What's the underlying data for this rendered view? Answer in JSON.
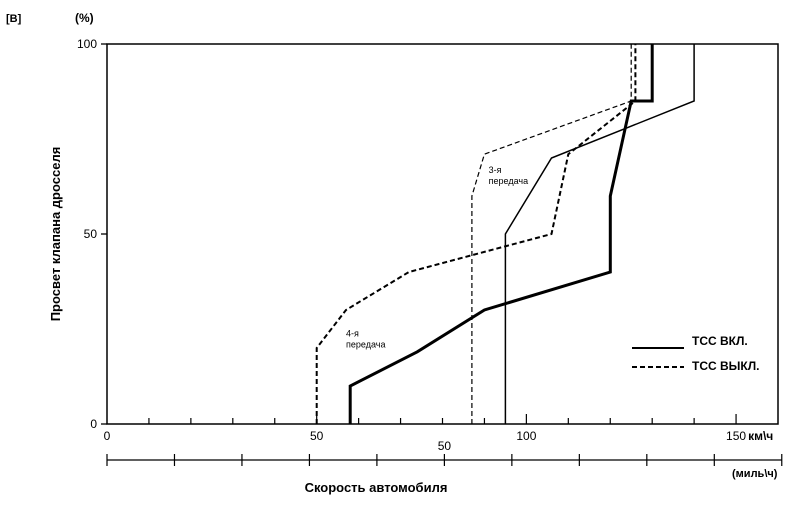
{
  "figure": {
    "label": "[B]"
  },
  "chart_data": {
    "type": "line",
    "y_unit": "(%)",
    "ylabel": "Просвет клапана дросселя",
    "xlabel": "Скорость автомобиля",
    "x_unit_primary": "км\\ч",
    "x_unit_secondary": "(миль\\ч)",
    "xlim": [
      0,
      160
    ],
    "ylim": [
      0,
      100
    ],
    "x_ticks": [
      {
        "value": 0,
        "label": "0"
      },
      {
        "value": 50,
        "label": "50"
      },
      {
        "value": 100,
        "label": "100"
      },
      {
        "value": 150,
        "label": "150"
      }
    ],
    "y_ticks": [
      {
        "value": 0,
        "label": "0"
      },
      {
        "value": 50,
        "label": "50"
      },
      {
        "value": 100,
        "label": "100"
      }
    ],
    "secondary_axis": {
      "unit": "mph",
      "label_value": 50,
      "tick_step": 10,
      "max": 100
    },
    "legend": {
      "position": "bottom-right",
      "entries": [
        {
          "label": "TCC ВКЛ.",
          "style": "solid"
        },
        {
          "label": "TCC ВЫКЛ.",
          "style": "dashed"
        }
      ]
    },
    "annotations": [
      {
        "text_lines": [
          "4-я",
          "передача"
        ],
        "x": 57,
        "y": 23
      },
      {
        "text_lines": [
          "3-я",
          "передача"
        ],
        "x": 91,
        "y": 66
      }
    ],
    "series": [
      {
        "name": "TCC ВКЛ.",
        "style": "solid",
        "stroke_width": 3,
        "points": [
          [
            58,
            0
          ],
          [
            58,
            10
          ],
          [
            74,
            19
          ],
          [
            90,
            30
          ],
          [
            120,
            40
          ],
          [
            120,
            60
          ],
          [
            125,
            85
          ],
          [
            130,
            85
          ],
          [
            130,
            100
          ]
        ]
      },
      {
        "name": "TCC ВКЛ.",
        "style": "solid",
        "stroke_width": 1.5,
        "points": [
          [
            95,
            0
          ],
          [
            95,
            50
          ],
          [
            106,
            70
          ],
          [
            140,
            85
          ],
          [
            140,
            100
          ]
        ]
      },
      {
        "name": "TCC ВЫКЛ.",
        "style": "dashed",
        "stroke_width": 2,
        "points": [
          [
            50,
            0
          ],
          [
            50,
            20
          ],
          [
            57,
            30
          ],
          [
            72,
            40
          ],
          [
            106,
            50
          ],
          [
            110,
            71
          ],
          [
            126,
            85
          ],
          [
            126,
            100
          ]
        ]
      },
      {
        "name": "TCC ВЫКЛ.",
        "style": "dashed",
        "stroke_width": 1.2,
        "points": [
          [
            87,
            0
          ],
          [
            87,
            60
          ],
          [
            90,
            71
          ],
          [
            125,
            85
          ],
          [
            125,
            100
          ]
        ]
      }
    ]
  }
}
